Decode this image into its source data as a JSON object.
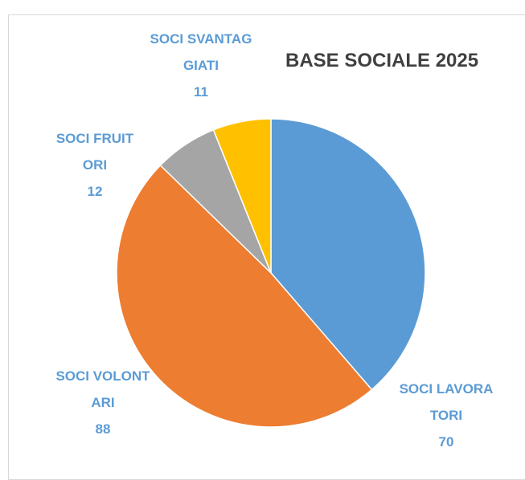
{
  "chart_data": {
    "type": "pie",
    "title": "BASE SOCIALE 2025",
    "categories": [
      "SOCI LAVORATORI",
      "SOCI VOLONTARI",
      "SOCI FRUITORI",
      "SOCI SVANTAGGIATI"
    ],
    "values": [
      70,
      88,
      12,
      11
    ],
    "colors": [
      "#5b9bd5",
      "#ed7d31",
      "#a5a5a5",
      "#ffc000"
    ]
  }
}
